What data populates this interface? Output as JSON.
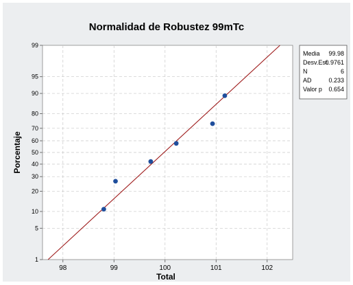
{
  "colors": {
    "background": "#eceef0",
    "plot_background": "#ffffff",
    "fit_line": "#9e1b1b",
    "points": "#1f4e9c",
    "grid": "#c8c8c8"
  },
  "chart_data": {
    "type": "scatter",
    "subtype": "normal probability plot",
    "title": "Normalidad de Robustez 99mTc",
    "xlabel": "Total",
    "ylabel": "Porcentaje",
    "xlim": [
      97.6,
      102.5
    ],
    "ylim": [
      1,
      99
    ],
    "y_scale": "normal probability",
    "x_ticks": [
      "98",
      "99",
      "100",
      "101",
      "102"
    ],
    "x_tick_values": [
      98,
      99,
      100,
      101,
      102
    ],
    "y_ticks": [
      "1",
      "5",
      "10",
      "20",
      "30",
      "40",
      "50",
      "60",
      "70",
      "80",
      "90",
      "95",
      "99"
    ],
    "y_tick_values": [
      1,
      5,
      10,
      20,
      30,
      40,
      50,
      60,
      70,
      80,
      90,
      95,
      99
    ],
    "grid": true,
    "fit_line": {
      "mean": 99.98,
      "stdev": 0.9761
    },
    "points": [
      {
        "x": 98.8,
        "y": 10.9
      },
      {
        "x": 99.03,
        "y": 26.6
      },
      {
        "x": 99.72,
        "y": 42.2
      },
      {
        "x": 100.22,
        "y": 57.8
      },
      {
        "x": 100.93,
        "y": 73.4
      },
      {
        "x": 101.17,
        "y": 89.1
      }
    ],
    "legend_position": "right",
    "stats": [
      {
        "label": "Media",
        "value": "99.98"
      },
      {
        "label": "Desv.Est.",
        "value": "0.9761"
      },
      {
        "label": "N",
        "value": "6"
      },
      {
        "label": "AD",
        "value": "0.233"
      },
      {
        "label": "Valor p",
        "value": "0.654"
      }
    ]
  }
}
